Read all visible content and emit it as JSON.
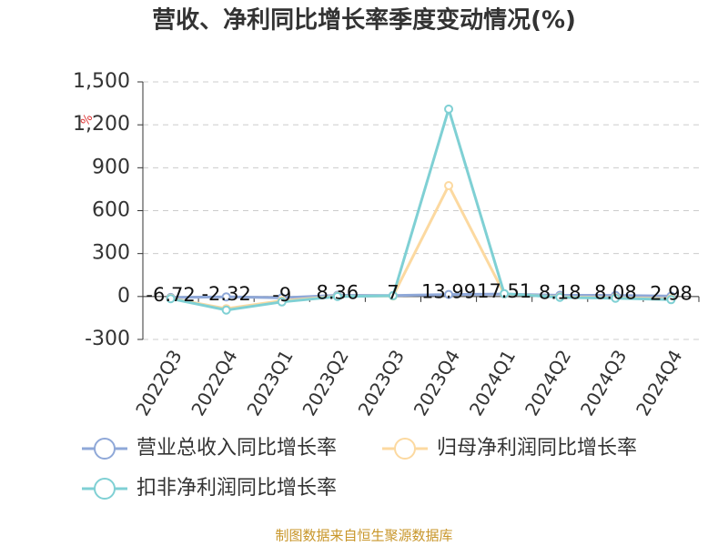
{
  "chart_data": {
    "type": "line",
    "title": "营收、净利同比增长率季度变动情况(%)",
    "y_label": "%",
    "categories": [
      "2022Q3",
      "2022Q4",
      "2023Q1",
      "2023Q2",
      "2023Q3",
      "2023Q4",
      "2024Q1",
      "2024Q2",
      "2024Q3",
      "2024Q4"
    ],
    "series": [
      {
        "name": "营业总收入同比增长率",
        "color": "#8fa8d8",
        "values": [
          -6.72,
          -2.32,
          -9,
          8.36,
          7,
          13.99,
          17.51,
          8.18,
          8.08,
          2.98
        ]
      },
      {
        "name": "归母净利润同比增长率",
        "color": "#fcd9a0",
        "values": [
          -12,
          -85,
          -30,
          2,
          4,
          775,
          18,
          -3,
          -8,
          -15
        ]
      },
      {
        "name": "扣非净利润同比增长率",
        "color": "#7fd0d4",
        "values": [
          -15,
          -95,
          -38,
          0,
          5,
          1310,
          20,
          -6,
          -12,
          -22
        ]
      }
    ],
    "ylim": [
      -300,
      1500
    ],
    "yticks": [
      -300,
      0,
      300,
      600,
      900,
      {
        "value": 1200,
        "label": "1,200"
      },
      {
        "value": 1500,
        "label": "1,500"
      }
    ],
    "grid": true,
    "source": "制图数据来自恒生聚源数据库"
  }
}
